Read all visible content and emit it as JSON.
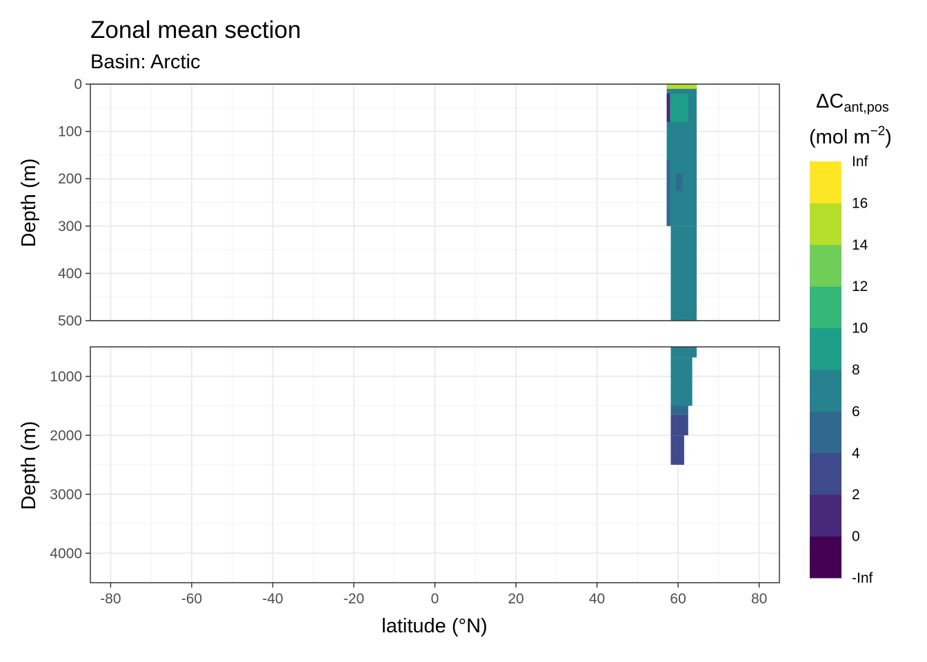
{
  "chart_data": {
    "type": "heatmap",
    "title": "Zonal mean section",
    "subtitle": "Basin: Arctic",
    "xlabel": "latitude (°N)",
    "ylabel": "Depth (m)",
    "x_ticks": [
      "-80",
      "-60",
      "-40",
      "-20",
      "0",
      "20",
      "40",
      "60",
      "80"
    ],
    "xlim": [
      -85,
      85
    ],
    "panels": [
      {
        "name": "upper",
        "ylim": [
          0,
          500
        ],
        "y_ticks": [
          "0",
          "100",
          "200",
          "300",
          "400",
          "500"
        ],
        "cells": [
          {
            "lat_min": 57.2,
            "lat_max": 64.6,
            "depth_min": 0,
            "depth_max": 300,
            "range": "6 - 8"
          },
          {
            "lat_min": 58.2,
            "lat_max": 64.6,
            "depth_min": 300,
            "depth_max": 500,
            "range": "6 - 8"
          },
          {
            "lat_min": 57.2,
            "lat_max": 64.6,
            "depth_min": 0,
            "depth_max": 10,
            "range": "14 - 16"
          },
          {
            "lat_min": 57.2,
            "lat_max": 58.5,
            "depth_min": 20,
            "depth_max": 80,
            "range": "0 - 2"
          },
          {
            "lat_min": 58.0,
            "lat_max": 62.5,
            "depth_min": 20,
            "depth_max": 80,
            "range": "8 - 10"
          },
          {
            "lat_min": 59.5,
            "lat_max": 61.0,
            "depth_min": 190,
            "depth_max": 225,
            "range": "4 - 6"
          },
          {
            "lat_min": 57.2,
            "lat_max": 58.0,
            "depth_min": 160,
            "depth_max": 300,
            "range": "4 - 6"
          }
        ]
      },
      {
        "name": "lower",
        "ylim": [
          500,
          4500
        ],
        "y_ticks": [
          "1000",
          "2000",
          "3000",
          "4000"
        ],
        "cells": [
          {
            "lat_min": 58.2,
            "lat_max": 64.6,
            "depth_min": 500,
            "depth_max": 680,
            "range": "6 - 8"
          },
          {
            "lat_min": 58.2,
            "lat_max": 63.5,
            "depth_min": 680,
            "depth_max": 1500,
            "range": "6 - 8"
          },
          {
            "lat_min": 58.2,
            "lat_max": 62.5,
            "depth_min": 1500,
            "depth_max": 1650,
            "range": "4 - 6"
          },
          {
            "lat_min": 58.2,
            "lat_max": 62.5,
            "depth_min": 1650,
            "depth_max": 2000,
            "range": "2 - 4"
          },
          {
            "lat_min": 58.2,
            "lat_max": 61.5,
            "depth_min": 2000,
            "depth_max": 2500,
            "range": "2 - 4"
          }
        ]
      }
    ],
    "legend": {
      "title_main": "ΔC",
      "title_sub": "ant,pos",
      "unit": "(mol m",
      "unit_sup": "−2",
      "unit_close": ")",
      "labels": [
        "-Inf",
        "0",
        "2",
        "4",
        "6",
        "8",
        "10",
        "12",
        "14",
        "16",
        "Inf"
      ],
      "ranges": [
        "-Inf - 0",
        "0 - 2",
        "2 - 4",
        "4 - 6",
        "6 - 8",
        "8 - 10",
        "10 - 12",
        "12 - 14",
        "14 - 16",
        "16 - Inf"
      ],
      "colors": [
        "#440154",
        "#482878",
        "#3e4a89",
        "#31688e",
        "#26828e",
        "#1f9e89",
        "#35b779",
        "#6ece58",
        "#b5de2b",
        "#fde725"
      ],
      "placement": "right"
    }
  }
}
